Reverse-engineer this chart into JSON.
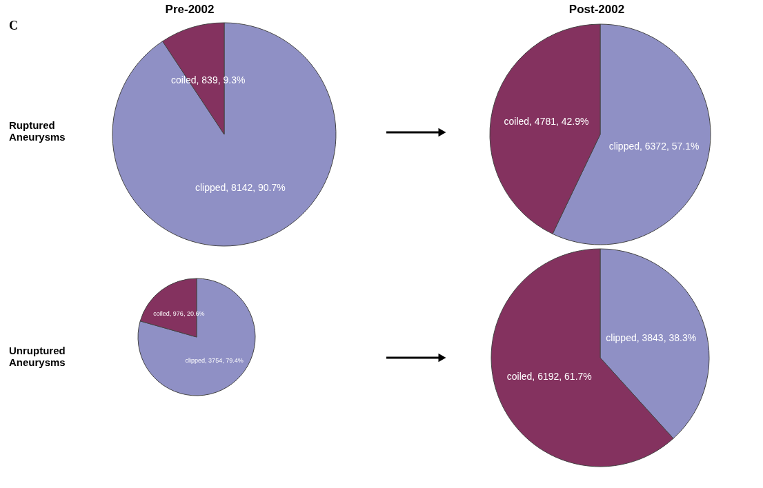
{
  "chart_data": [
    {
      "type": "pie",
      "title": "Pre-2002",
      "categories": [
        "clipped",
        "coiled"
      ],
      "values": [
        90.7,
        9.3
      ],
      "value_labels": [
        "8142, 90.7%",
        "839, 9.3%"
      ],
      "colors": [
        "#8f90c5",
        "#84325f"
      ],
      "annotations": [
        "C",
        "Ruptured Aneurysms"
      ]
    },
    {
      "type": "pie",
      "title": "Post-2002",
      "categories": [
        "clipped",
        "coiled"
      ],
      "values": [
        57.1,
        42.9
      ],
      "value_labels": [
        "6372, 57.1%",
        "4781, 42.9%"
      ],
      "colors": [
        "#8f90c5",
        "#84325f"
      ]
    },
    {
      "type": "pie",
      "categories": [
        "clipped",
        "coiled"
      ],
      "values": [
        79.4,
        20.6
      ],
      "value_labels": [
        "3754, 79.4%",
        "976, 20.6%"
      ],
      "colors": [
        "#8f90c5",
        "#84325f"
      ],
      "annotations": [
        "Unruptured Aneurysms"
      ]
    },
    {
      "type": "pie",
      "categories": [
        "clipped",
        "coiled"
      ],
      "values": [
        38.3,
        61.7
      ],
      "value_labels": [
        "3843, 38.3%",
        "6192, 61.7%"
      ],
      "colors": [
        "#8f90c5",
        "#84325f"
      ]
    }
  ]
}
